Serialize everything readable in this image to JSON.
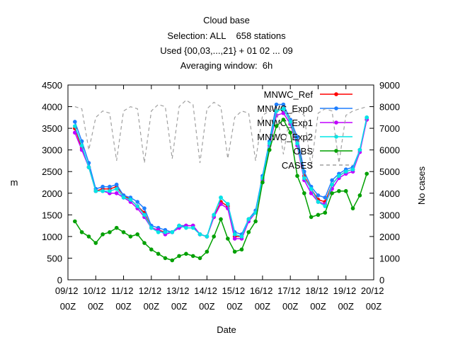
{
  "chart_data": {
    "type": "line",
    "title": [
      "Cloud base",
      "Selection: ALL    658 stations",
      "Used {00,03,...,21} + 01 02 ... 09",
      "Averaging window:  6h"
    ],
    "xlabel": "Date",
    "ylabel": "m",
    "y2label": "No cases",
    "xlim": [
      "09/12 00Z",
      "20/12 00Z"
    ],
    "xticks": [
      "09/12 00Z",
      "10/12 00Z",
      "11/12 00Z",
      "12/12 00Z",
      "13/12 00Z",
      "14/12 00Z",
      "15/12 00Z",
      "16/12 00Z",
      "17/12 00Z",
      "18/12 00Z",
      "19/12 00Z",
      "20/12 00Z"
    ],
    "ylim": [
      0,
      4500
    ],
    "yticks": [
      0,
      500,
      1000,
      1500,
      2000,
      2500,
      3000,
      3500,
      4000,
      4500
    ],
    "y2lim": [
      0,
      9000
    ],
    "y2ticks": [
      0,
      1000,
      2000,
      3000,
      4000,
      5000,
      6000,
      7000,
      8000,
      9000
    ],
    "legend": "upper right",
    "x": [
      "09/12 06Z",
      "09/12 12Z",
      "09/12 18Z",
      "10/12 00Z",
      "10/12 06Z",
      "10/12 12Z",
      "10/12 18Z",
      "11/12 00Z",
      "11/12 06Z",
      "11/12 12Z",
      "11/12 18Z",
      "12/12 00Z",
      "12/12 06Z",
      "12/12 12Z",
      "12/12 18Z",
      "13/12 00Z",
      "13/12 06Z",
      "13/12 12Z",
      "13/12 18Z",
      "14/12 00Z",
      "14/12 06Z",
      "14/12 12Z",
      "14/12 18Z",
      "15/12 00Z",
      "15/12 06Z",
      "15/12 12Z",
      "15/12 18Z",
      "16/12 00Z",
      "16/12 06Z",
      "16/12 12Z",
      "16/12 18Z",
      "17/12 00Z",
      "17/12 06Z",
      "17/12 12Z",
      "17/12 18Z",
      "18/12 00Z",
      "18/12 06Z",
      "18/12 12Z",
      "18/12 18Z",
      "19/12 00Z",
      "19/12 06Z",
      "19/12 12Z",
      "19/12 18Z"
    ],
    "series": [
      {
        "name": "MNWC_Ref",
        "color": "#ff0000",
        "values": [
          3500,
          3050,
          2600,
          2050,
          2100,
          2100,
          2150,
          1950,
          1850,
          1700,
          1550,
          1200,
          1150,
          1100,
          1100,
          1250,
          1250,
          1250,
          1050,
          1000,
          1450,
          1800,
          1700,
          1000,
          1000,
          1400,
          1550,
          2350,
          3150,
          3900,
          3950,
          3650,
          3200,
          2400,
          2100,
          1850,
          1800,
          2200,
          2400,
          2500,
          2550,
          3000,
          3700
        ]
      },
      {
        "name": "MNWC_Exp0",
        "color": "#1e7fff",
        "values": [
          3650,
          3200,
          2700,
          2100,
          2150,
          2150,
          2200,
          1950,
          1900,
          1800,
          1650,
          1250,
          1200,
          1150,
          1100,
          1250,
          1250,
          1250,
          1050,
          1000,
          1500,
          1900,
          1750,
          1100,
          1050,
          1400,
          1600,
          2400,
          3200,
          4050,
          4050,
          3700,
          3300,
          2500,
          2150,
          1950,
          1900,
          2300,
          2450,
          2550,
          2600,
          3000,
          3750
        ]
      },
      {
        "name": "MNWC_Exp1",
        "color": "#c000ff",
        "values": [
          3400,
          3000,
          2600,
          2050,
          2050,
          2000,
          2000,
          1900,
          1800,
          1650,
          1450,
          1200,
          1150,
          1050,
          1100,
          1200,
          1250,
          1250,
          1050,
          1000,
          1450,
          1750,
          1650,
          950,
          950,
          1350,
          1550,
          2300,
          3100,
          3800,
          3850,
          3600,
          3100,
          2300,
          2000,
          1800,
          1750,
          2100,
          2350,
          2450,
          2500,
          2950,
          3700
        ]
      },
      {
        "name": "MNWC_Exp2",
        "color": "#00e5e5",
        "values": [
          3550,
          3100,
          2600,
          2050,
          2050,
          2050,
          2100,
          1900,
          1850,
          1700,
          1500,
          1200,
          1100,
          1100,
          1100,
          1250,
          1200,
          1200,
          1050,
          1000,
          1500,
          1900,
          1750,
          1050,
          1000,
          1400,
          1550,
          2350,
          3150,
          3900,
          3950,
          3650,
          3150,
          2350,
          2100,
          1800,
          1700,
          2200,
          2400,
          2500,
          2550,
          3000,
          3750
        ]
      },
      {
        "name": "OBS",
        "color": "#00a000",
        "values": [
          1350,
          1100,
          1000,
          850,
          1050,
          1100,
          1200,
          1100,
          1000,
          1050,
          850,
          700,
          600,
          500,
          450,
          550,
          600,
          550,
          500,
          650,
          1000,
          1400,
          950,
          650,
          700,
          1100,
          1350,
          2250,
          3000,
          3550,
          3700,
          3400,
          2400,
          2000,
          1450,
          1500,
          1550,
          2000,
          2050,
          2050,
          1650,
          1950,
          2450
        ]
      },
      {
        "name": "CASES",
        "color": "#a0a0a0",
        "axis": "y2",
        "dashed": true,
        "markers": false,
        "values": [
          8000,
          7900,
          6000,
          7500,
          7800,
          7700,
          5500,
          7800,
          8000,
          7900,
          5400,
          7800,
          8100,
          8000,
          5600,
          8000,
          8300,
          8100,
          5400,
          7900,
          8200,
          8000,
          5600,
          7500,
          7800,
          7700,
          5500,
          7600,
          7800,
          7900,
          5800,
          7700,
          7800,
          7600,
          5200,
          7700,
          7900,
          7800,
          5400,
          7600,
          7800,
          7900,
          8000
        ]
      }
    ]
  }
}
